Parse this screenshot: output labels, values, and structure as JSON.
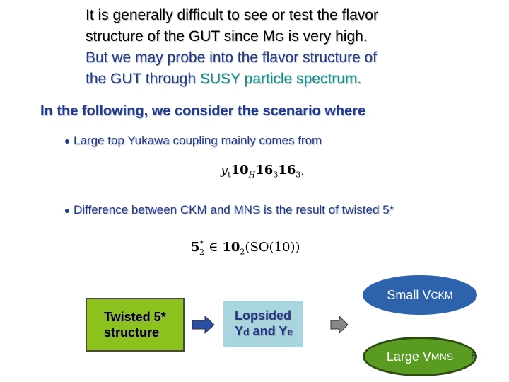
{
  "intro": {
    "line1": "It is generally difficult to see or test the flavor",
    "line2": [
      "structure of the GUT since M",
      "G",
      " is very high."
    ],
    "line3": "But we may probe into the flavor structure of",
    "line4": [
      "the GUT through ",
      "SUSY particle spectrum."
    ]
  },
  "heading": "In the following, we consider the scenario where",
  "bullets": [
    {
      "text": "Large top Yukawa coupling mainly comes from",
      "formula": [
        {
          "base": "y",
          "sub": "t"
        },
        {
          "base": "10",
          "sub": "H"
        },
        {
          "base": "16",
          "sub": "3"
        },
        {
          "base": "16",
          "sub": "3"
        },
        {
          "base": ","
        }
      ]
    },
    {
      "text": "Difference between CKM and MNS is the result of twisted 5*",
      "formula": [
        {
          "base": "5",
          "sup": "*",
          "sub": "2"
        },
        {
          "base": "∈"
        },
        {
          "base": "10",
          "sub": "2"
        },
        {
          "base": "(SO(10))"
        }
      ]
    }
  ],
  "diagram": {
    "source": [
      "Twisted 5*",
      "structure"
    ],
    "middle": {
      "line1": "Lopsided",
      "line2": [
        "Y",
        "d",
        " and Y",
        "e"
      ]
    },
    "outcomes": [
      [
        "Small V",
        "CKM"
      ],
      [
        "Large V",
        "MNS"
      ]
    ]
  },
  "page_number": "8"
}
